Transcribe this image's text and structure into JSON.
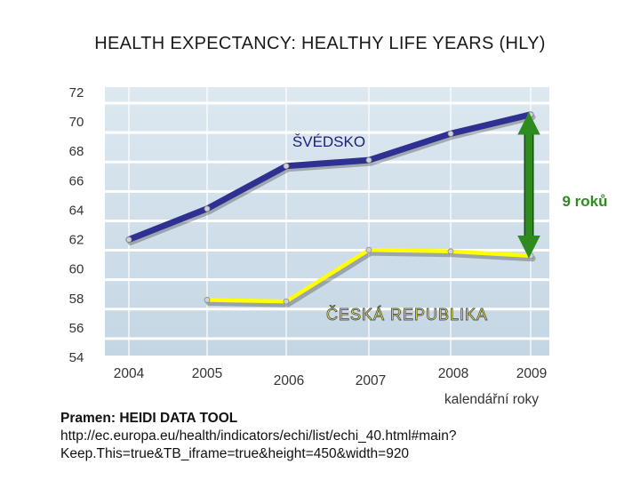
{
  "title": "HEALTH EXPECTANCY: HEALTHY LIFE YEARS (HLY)",
  "chart_data": {
    "type": "line",
    "title": "HEALTH EXPECTANCY: HEALTHY LIFE YEARS (HLY)",
    "xlabel": "kalendářní roky",
    "ylabel": "",
    "ylim": [
      54,
      72
    ],
    "y_ticks": [
      72,
      70,
      68,
      66,
      64,
      62,
      60,
      58,
      56,
      54
    ],
    "categories": [
      "2004",
      "2005",
      "2006",
      "2007",
      "2008",
      "2009"
    ],
    "series": [
      {
        "name": "ŠVÉDSKO",
        "color": "#2e3192",
        "values": [
          62.0,
          64.1,
          67.0,
          67.4,
          69.2,
          70.5
        ]
      },
      {
        "name": "ČESKÁ REPUBLIKA",
        "color": "#ffff00",
        "values": [
          null,
          57.9,
          57.8,
          61.3,
          61.2,
          60.9
        ]
      }
    ],
    "annotation": {
      "text": "9 roků",
      "color": "#2e8b1f",
      "year": "2009"
    },
    "grid": true
  },
  "source": {
    "label": "Pramen: HEIDI DATA TOOL",
    "url": "http://ec.europa.eu/health/indicators/echi/list/echi_40.html#main?Keep.This=true&TB_iframe=true&height=450&width=920"
  }
}
